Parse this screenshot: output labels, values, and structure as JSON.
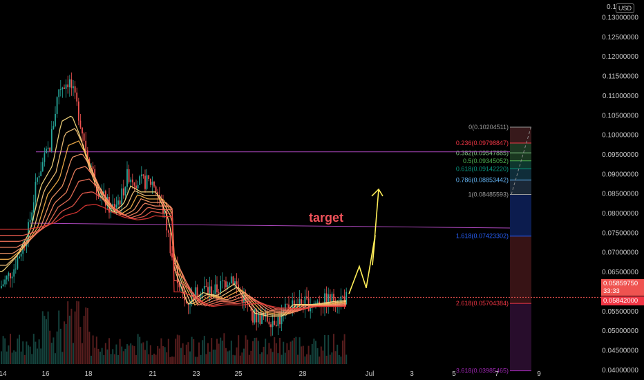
{
  "currency": "USD",
  "price_scale": [
    "0.13000000",
    "0.12500000",
    "0.12000000",
    "0.11500000",
    "0.11000000",
    "0.10500000",
    "0.10000000",
    "0.09500000",
    "0.09000000",
    "0.08500000",
    "0.08000000",
    "0.07500000",
    "0.07000000",
    "0.06500000",
    "0.06000000",
    "0.05500000",
    "0.05000000",
    "0.04500000",
    "0.04000000"
  ],
  "price_scale_top_partial": "0.1",
  "time_axis": [
    "14",
    "16",
    "18",
    "21",
    "23",
    "25",
    "28",
    "Jul",
    "3",
    "5",
    "7",
    "9"
  ],
  "annotation_text": "target",
  "current_price": "0.05859750",
  "countdown": "33:33",
  "bid_price": "0.05842000",
  "fib_levels": [
    {
      "label": "0(0.10204511)",
      "ratio": "0",
      "value": 0.10204511,
      "color": "#9a9a9a"
    },
    {
      "label": "0.236(0.09798847)",
      "ratio": "0.236",
      "value": 0.09798847,
      "color": "#f23645"
    },
    {
      "label": "0.382(0.09547885)",
      "ratio": "0.382",
      "value": 0.09547885,
      "color": "#81c784"
    },
    {
      "label": "0.5(0.09345052)",
      "ratio": "0.5",
      "value": 0.09345052,
      "color": "#4caf50"
    },
    {
      "label": "0.618(0.09142220)",
      "ratio": "0.618",
      "value": 0.0914222,
      "color": "#089981"
    },
    {
      "label": "0.786(0.08853442)",
      "ratio": "0.786",
      "value": 0.08853442,
      "color": "#64b5f6"
    },
    {
      "label": "1(0.08485593)",
      "ratio": "1",
      "value": 0.08485593,
      "color": "#9a9a9a"
    },
    {
      "label": "1.618(0.07423302)",
      "ratio": "1.618",
      "value": 0.07423302,
      "color": "#2962ff"
    },
    {
      "label": "2.618(0.05704384)",
      "ratio": "2.618",
      "value": 0.05704384,
      "color": "#f23645"
    },
    {
      "label": "3.618(0.03985465)",
      "ratio": "3.618",
      "value": 0.03985465,
      "color": "#9c27b0"
    }
  ],
  "colors": {
    "up": "#26a69a",
    "down": "#ef5350",
    "ribbon_top": "#ffe082",
    "ribbon_bottom": "#e53935",
    "trend_line": "#ab47bc",
    "projection": "#ffee58",
    "price_line": "#ef5350"
  },
  "chart_data": {
    "type": "candlestick",
    "y_range": [
      0.0375,
      0.1345
    ],
    "horizontal_lines": [
      0.09575,
      0.0745
    ],
    "projection_path": [
      0.0595,
      0.0665,
      0.061,
      0.0745,
      0.0668,
      0.0862
    ],
    "current_price": 0.0585975,
    "grid": false
  }
}
